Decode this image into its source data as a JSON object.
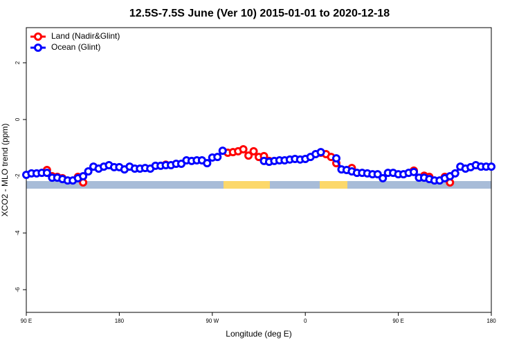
{
  "chart_data": {
    "type": "line",
    "title": "12.5S-7.5S June (Ver 10)   2015-01-01 to 2020-12-18",
    "x_label": "Longitude (deg E)",
    "y_label": "XCO2 - MLO trend (ppm)",
    "x": [
      90,
      95,
      100,
      105,
      110,
      115,
      120,
      125,
      130,
      135,
      140,
      145,
      150,
      155,
      160,
      165,
      170,
      175,
      180,
      185,
      190,
      195,
      200,
      205,
      210,
      215,
      220,
      225,
      230,
      235,
      240,
      245,
      250,
      255,
      260,
      265,
      270,
      275,
      280,
      285,
      290,
      295,
      300,
      305,
      310,
      315,
      320,
      325,
      330,
      335,
      340,
      345,
      350,
      355,
      360,
      365,
      370,
      375,
      380,
      385,
      390,
      395,
      400,
      405,
      410,
      415,
      420,
      425,
      430,
      435,
      440,
      445,
      450,
      455,
      460,
      465,
      470,
      475,
      480,
      485,
      490,
      495,
      500,
      505,
      510,
      515,
      520,
      525,
      530,
      535,
      540
    ],
    "series": [
      {
        "name": "Land (Nadir&Glint)",
        "color": "#ff0000",
        "values": [
          null,
          null,
          null,
          null,
          -1.78,
          -2.0,
          -2.02,
          -2.07,
          null,
          null,
          -2.02,
          -2.22,
          null,
          null,
          null,
          null,
          null,
          null,
          null,
          null,
          null,
          null,
          null,
          null,
          null,
          null,
          null,
          -1.59,
          null,
          null,
          null,
          null,
          null,
          null,
          null,
          null,
          null,
          null,
          null,
          -1.17,
          -1.15,
          -1.12,
          -1.05,
          -1.27,
          -1.12,
          -1.32,
          -1.29,
          -1.46,
          null,
          null,
          null,
          null,
          null,
          null,
          null,
          null,
          null,
          -1.17,
          -1.22,
          -1.32,
          -1.54,
          null,
          null,
          -1.71,
          null,
          null,
          null,
          null,
          null,
          null,
          null,
          null,
          null,
          null,
          null,
          -1.8,
          null,
          -1.98,
          -2.02,
          null,
          null,
          -2.02,
          -2.22,
          null,
          null,
          null,
          null,
          null,
          null,
          null,
          null
        ]
      },
      {
        "name": "Ocean (Glint)",
        "color": "#0000ff",
        "values": [
          -1.95,
          -1.9,
          -1.9,
          -1.88,
          -1.88,
          -2.05,
          -2.05,
          -2.1,
          -2.15,
          -2.15,
          -2.07,
          -2.0,
          -1.83,
          -1.66,
          -1.73,
          -1.66,
          -1.61,
          -1.68,
          -1.68,
          -1.76,
          -1.66,
          -1.73,
          -1.73,
          -1.71,
          -1.73,
          -1.63,
          -1.63,
          -1.61,
          -1.61,
          -1.56,
          -1.56,
          -1.44,
          -1.46,
          -1.44,
          -1.44,
          -1.54,
          -1.34,
          -1.32,
          -1.1,
          null,
          null,
          null,
          null,
          null,
          null,
          null,
          -1.46,
          -1.49,
          -1.46,
          -1.44,
          -1.44,
          -1.41,
          -1.39,
          -1.41,
          -1.39,
          -1.32,
          -1.22,
          -1.15,
          null,
          null,
          -1.37,
          -1.76,
          -1.78,
          -1.83,
          -1.88,
          -1.88,
          -1.9,
          -1.93,
          -1.93,
          -2.07,
          -1.88,
          -1.88,
          -1.93,
          -1.93,
          -1.88,
          -1.85,
          -2.05,
          -2.05,
          -2.1,
          -2.15,
          -2.15,
          -2.07,
          -2.0,
          -1.9,
          -1.66,
          -1.73,
          -1.68,
          -1.61,
          -1.66,
          -1.66,
          -1.66
        ]
      }
    ],
    "xlim": [
      90,
      540
    ],
    "xticks": [
      {
        "value": 90,
        "label": "90 E"
      },
      180,
      {
        "value": 270,
        "label": "90 W"
      },
      {
        "value": 360,
        "label": "0"
      },
      {
        "value": 450,
        "label": "90 E"
      },
      {
        "value": 540,
        "label": "180"
      }
    ],
    "ylim": [
      -6.8,
      3.24
    ],
    "yticks": [
      -6,
      -4,
      -2,
      0,
      2
    ],
    "legend": "top-left",
    "grid": false
  }
}
